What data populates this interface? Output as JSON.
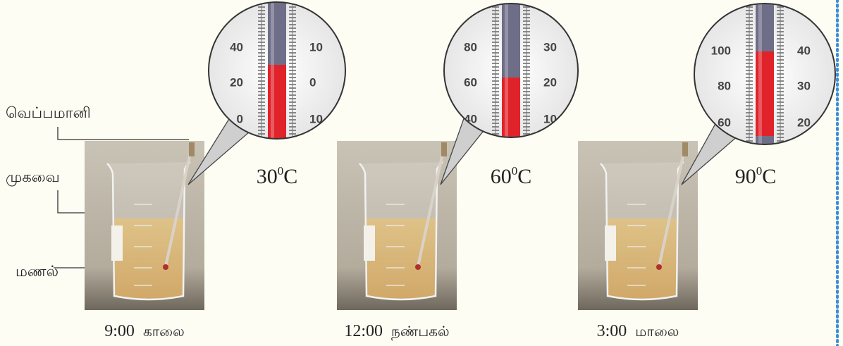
{
  "labels": {
    "thermometer": "வெப்பமானி",
    "beaker": "முகவை",
    "sand": "மணல்"
  },
  "panels": [
    {
      "time": "9:00",
      "period": "காலை",
      "temperature": "30",
      "degree": "0",
      "unit": "C",
      "left_scale": [
        "40",
        "20",
        "0"
      ],
      "right_scale": [
        "10",
        "0",
        "10"
      ]
    },
    {
      "time": "12:00",
      "period": "நண்பகல்",
      "temperature": "60",
      "degree": "0",
      "unit": "C",
      "left_scale": [
        "80",
        "60",
        "40"
      ],
      "right_scale": [
        "30",
        "20",
        "10"
      ]
    },
    {
      "time": "3:00",
      "period": "மாலை",
      "temperature": "90",
      "degree": "0",
      "unit": "C",
      "left_scale": [
        "100",
        "80",
        "60"
      ],
      "right_scale": [
        "40",
        "30",
        "20"
      ]
    }
  ]
}
